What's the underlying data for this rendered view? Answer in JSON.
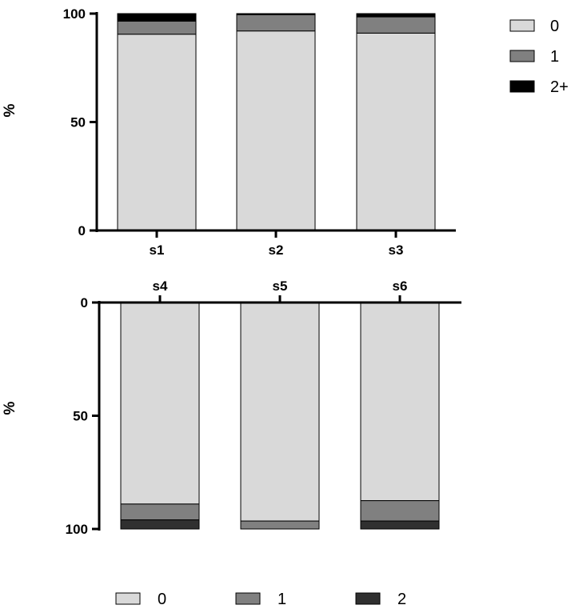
{
  "chart_data": [
    {
      "type": "bar",
      "stacked": true,
      "orientation": "vertical",
      "categories": [
        "s1",
        "s2",
        "s3"
      ],
      "ylabel": "%",
      "ylim": [
        0,
        100
      ],
      "yticks": [
        "0",
        "50",
        "100"
      ],
      "series": [
        {
          "name": "0",
          "color": "#d9d9d9",
          "values": [
            90.5,
            92,
            91
          ]
        },
        {
          "name": "1",
          "color": "#808080",
          "values": [
            6,
            7.5,
            7.5
          ]
        },
        {
          "name": "2+",
          "color": "#000000",
          "values": [
            3.5,
            0.5,
            1.5
          ]
        }
      ],
      "legend": "right"
    },
    {
      "type": "bar",
      "stacked": true,
      "orientation": "vertical",
      "y_inverted": true,
      "categories": [
        "s4",
        "s5",
        "s6"
      ],
      "ylabel": "%",
      "ylim": [
        0,
        100
      ],
      "yticks": [
        "0",
        "50",
        "100"
      ],
      "series": [
        {
          "name": "0",
          "color": "#d9d9d9",
          "values": [
            89,
            96.5,
            87.5
          ]
        },
        {
          "name": "1",
          "color": "#808080",
          "values": [
            7,
            3.5,
            9
          ]
        },
        {
          "name": "2",
          "color": "#303030",
          "values": [
            4,
            0,
            3.5
          ]
        }
      ],
      "legend": "bottom"
    }
  ]
}
